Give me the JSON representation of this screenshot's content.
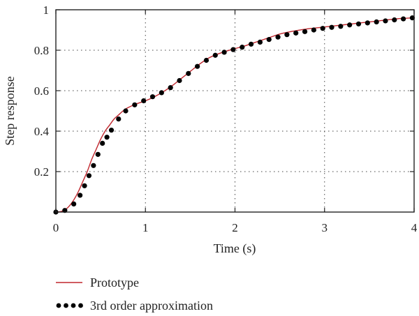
{
  "chart_data": {
    "type": "line",
    "xlabel": "Time (s)",
    "ylabel": "Step response",
    "xlim": [
      0,
      4
    ],
    "ylim": [
      0,
      1
    ],
    "grid": true,
    "legend_position": "below",
    "x_ticks": [
      "0",
      "1",
      "2",
      "3",
      "4"
    ],
    "y_ticks": [
      "0.2",
      "0.4",
      "0.6",
      "0.8",
      "1"
    ],
    "series": [
      {
        "name": "Prototype",
        "style": "line",
        "color": "#c0262d",
        "x": [
          0.0,
          0.05,
          0.1,
          0.15,
          0.2,
          0.25,
          0.3,
          0.35,
          0.4,
          0.45,
          0.5,
          0.55,
          0.6,
          0.65,
          0.7,
          0.75,
          0.8,
          0.9,
          1.0,
          1.1,
          1.2,
          1.3,
          1.4,
          1.5,
          1.6,
          1.7,
          1.8,
          1.9,
          2.0,
          2.1,
          2.2,
          2.3,
          2.4,
          2.5,
          2.6,
          2.7,
          2.8,
          2.9,
          3.0,
          3.2,
          3.4,
          3.6,
          3.8,
          4.0
        ],
        "y": [
          0.0,
          0.002,
          0.01,
          0.03,
          0.06,
          0.1,
          0.15,
          0.2,
          0.26,
          0.31,
          0.36,
          0.4,
          0.43,
          0.46,
          0.48,
          0.5,
          0.515,
          0.535,
          0.55,
          0.57,
          0.595,
          0.625,
          0.66,
          0.695,
          0.73,
          0.76,
          0.78,
          0.795,
          0.808,
          0.82,
          0.835,
          0.85,
          0.865,
          0.88,
          0.89,
          0.898,
          0.905,
          0.91,
          0.915,
          0.925,
          0.935,
          0.945,
          0.955,
          0.96
        ]
      },
      {
        "name": "3rd order approximation",
        "style": "markers",
        "color": "#000000",
        "x": [
          0.0,
          0.1,
          0.2,
          0.27,
          0.32,
          0.37,
          0.42,
          0.47,
          0.52,
          0.57,
          0.62,
          0.7,
          0.78,
          0.88,
          0.98,
          1.08,
          1.18,
          1.28,
          1.38,
          1.48,
          1.58,
          1.68,
          1.78,
          1.88,
          1.98,
          2.08,
          2.18,
          2.28,
          2.38,
          2.48,
          2.58,
          2.68,
          2.78,
          2.88,
          2.98,
          3.08,
          3.18,
          3.28,
          3.38,
          3.48,
          3.58,
          3.68,
          3.78,
          3.88,
          3.98
        ],
        "y": [
          0.0,
          0.008,
          0.04,
          0.083,
          0.13,
          0.18,
          0.23,
          0.285,
          0.34,
          0.37,
          0.405,
          0.46,
          0.5,
          0.53,
          0.55,
          0.57,
          0.59,
          0.615,
          0.65,
          0.685,
          0.72,
          0.75,
          0.775,
          0.79,
          0.803,
          0.815,
          0.83,
          0.84,
          0.853,
          0.865,
          0.877,
          0.885,
          0.892,
          0.9,
          0.908,
          0.913,
          0.918,
          0.925,
          0.93,
          0.935,
          0.94,
          0.945,
          0.95,
          0.955,
          0.96
        ]
      }
    ]
  }
}
